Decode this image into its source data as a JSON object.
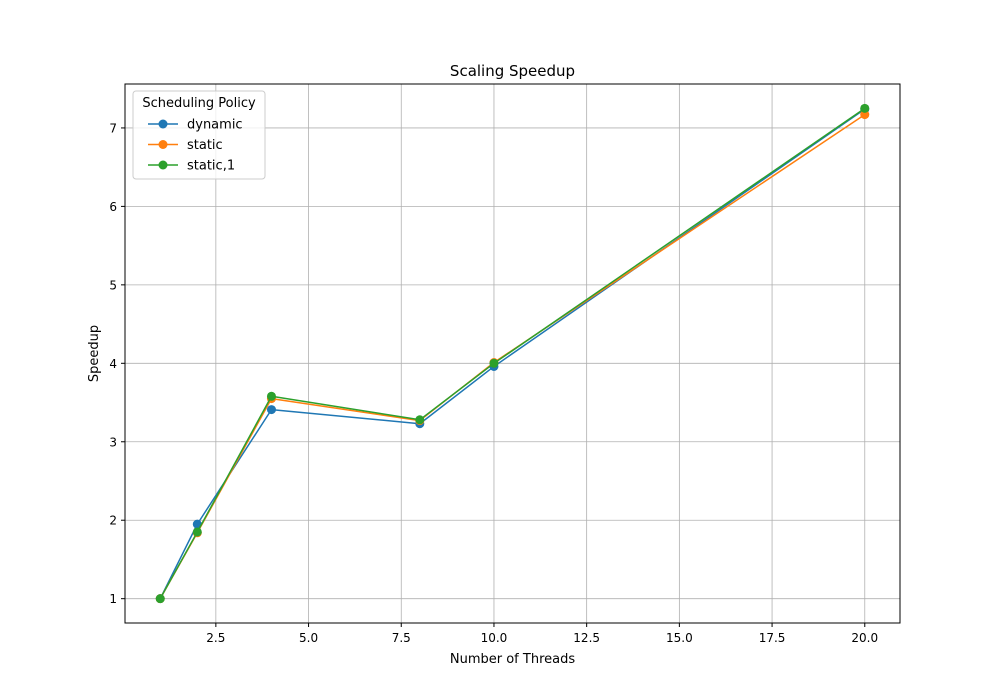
{
  "chart_data": {
    "type": "line",
    "title": "Scaling Speedup",
    "xlabel": "Number of Threads",
    "ylabel": "Speedup",
    "xlim": [
      0.05,
      20.95
    ],
    "ylim": [
      0.69,
      7.56
    ],
    "xticks": [
      2.5,
      5.0,
      7.5,
      10.0,
      12.5,
      15.0,
      17.5,
      20.0
    ],
    "xtick_labels": [
      "2.5",
      "5.0",
      "7.5",
      "10.0",
      "12.5",
      "15.0",
      "17.5",
      "20.0"
    ],
    "yticks": [
      1,
      2,
      3,
      4,
      5,
      6,
      7
    ],
    "ytick_labels": [
      "1",
      "2",
      "3",
      "4",
      "5",
      "6",
      "7"
    ],
    "grid": true,
    "legend": {
      "title": "Scheduling Policy",
      "position": "top-left"
    },
    "x": [
      1,
      2,
      4,
      8,
      10,
      20
    ],
    "series": [
      {
        "name": "dynamic",
        "color": "#1f77b4",
        "values": [
          1.0,
          1.95,
          3.41,
          3.23,
          3.96,
          7.24
        ]
      },
      {
        "name": "static",
        "color": "#ff7f0e",
        "values": [
          1.0,
          1.84,
          3.55,
          3.27,
          4.01,
          7.17
        ]
      },
      {
        "name": "static,1",
        "color": "#2ca02c",
        "values": [
          1.0,
          1.85,
          3.58,
          3.28,
          4.0,
          7.25
        ]
      }
    ]
  }
}
